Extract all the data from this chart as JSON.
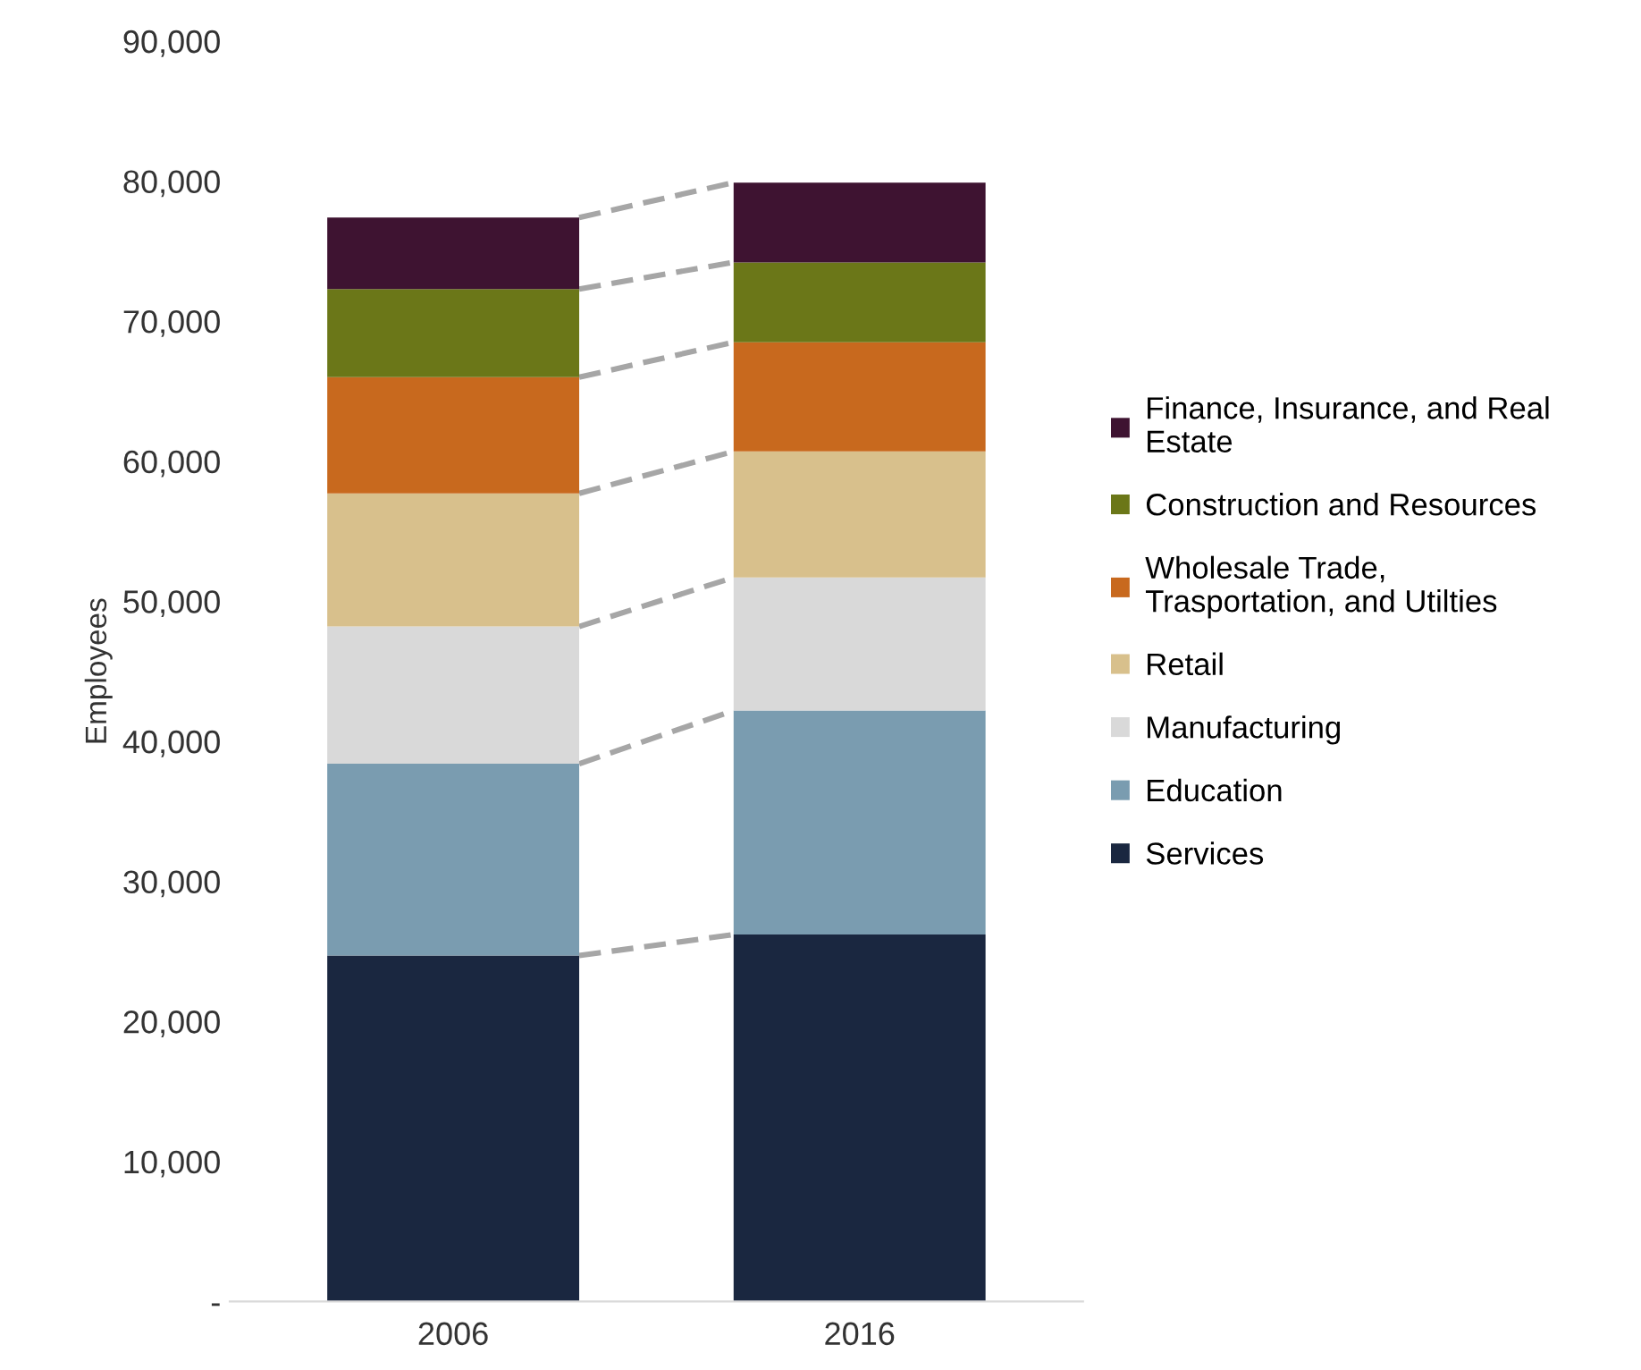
{
  "chart_data": {
    "type": "bar",
    "stacked": true,
    "ylabel": "Employees",
    "categories": [
      "2006",
      "2016"
    ],
    "ylim": [
      0,
      90000
    ],
    "yticks": [
      {
        "value": 0,
        "label": "-"
      },
      {
        "value": 10000,
        "label": "10,000"
      },
      {
        "value": 20000,
        "label": "20,000"
      },
      {
        "value": 30000,
        "label": "30,000"
      },
      {
        "value": 40000,
        "label": "40,000"
      },
      {
        "value": 50000,
        "label": "50,000"
      },
      {
        "value": 60000,
        "label": "60,000"
      },
      {
        "value": 70000,
        "label": "70,000"
      },
      {
        "value": 80000,
        "label": "80,000"
      },
      {
        "value": 90000,
        "label": "90,000"
      }
    ],
    "grid": false,
    "legend": "right",
    "series": [
      {
        "name": "Services",
        "color": "#1a2740",
        "values": [
          24700,
          26200
        ]
      },
      {
        "name": "Education",
        "color": "#7a9cb0",
        "values": [
          13700,
          16000
        ]
      },
      {
        "name": "Manufacturing",
        "color": "#d9d9d9",
        "values": [
          9800,
          9500
        ]
      },
      {
        "name": "Retail",
        "color": "#d8c08c",
        "values": [
          9500,
          9000
        ]
      },
      {
        "name": "Wholesale Trade, Trasportation, and Utilties",
        "color": "#c8691e",
        "values": [
          8300,
          7800
        ]
      },
      {
        "name": "Construction and Resources",
        "color": "#6b7718",
        "values": [
          6300,
          5700
        ]
      },
      {
        "name": "Finance, Insurance, and Real Estate",
        "color": "#3e1331",
        "values": [
          5100,
          5700
        ]
      }
    ]
  }
}
